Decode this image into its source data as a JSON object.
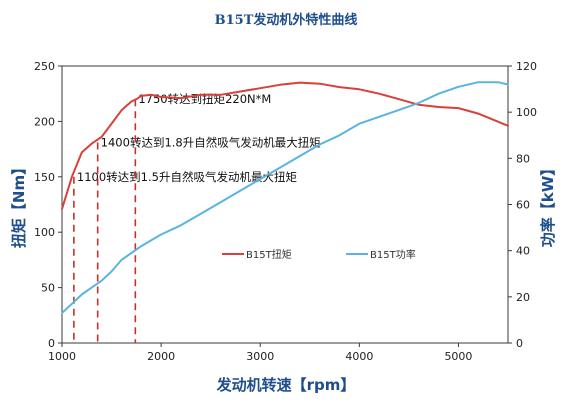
{
  "chart_data": {
    "type": "line",
    "title": "B15T发动机外特性曲线",
    "xlabel": "发动机转速【rpm】",
    "ylabel_left": "扭矩【Nm】",
    "ylabel_right": "功率【kW】",
    "xlim": [
      1000,
      5500
    ],
    "ylim_left": [
      0,
      250
    ],
    "ylim_right": [
      0,
      120
    ],
    "x_ticks": [
      "1000",
      "2000",
      "3000",
      "4000",
      "5000"
    ],
    "y_left_ticks": [
      "0",
      "50",
      "100",
      "150",
      "200",
      "250"
    ],
    "y_right_ticks": [
      "0",
      "20",
      "40",
      "60",
      "80",
      "100",
      "120"
    ],
    "grid": false,
    "legend_position": "center-right",
    "series": [
      {
        "name": "B15T扭矩",
        "axis": "left",
        "color": "#d9403a",
        "x": [
          1000,
          1100,
          1200,
          1300,
          1400,
          1500,
          1600,
          1700,
          1750,
          1800,
          1900,
          2000,
          2200,
          2400,
          2600,
          2800,
          3000,
          3200,
          3400,
          3600,
          3800,
          4000,
          4200,
          4400,
          4600,
          4800,
          5000,
          5200,
          5500
        ],
        "y": [
          121,
          150,
          172,
          180,
          186,
          198,
          210,
          218,
          220,
          223,
          224,
          222,
          221,
          224,
          224,
          227,
          230,
          233,
          235,
          234,
          231,
          229,
          225,
          220,
          215,
          213,
          212,
          207,
          196
        ]
      },
      {
        "name": "B15T功率",
        "axis": "right",
        "color": "#5ab4e0",
        "x": [
          1000,
          1100,
          1200,
          1300,
          1400,
          1500,
          1600,
          1700,
          1800,
          2000,
          2200,
          2400,
          2600,
          2800,
          3000,
          3200,
          3400,
          3600,
          3800,
          4000,
          4200,
          4400,
          4600,
          4800,
          5000,
          5200,
          5400,
          5500
        ],
        "y": [
          13,
          17,
          21,
          24,
          27,
          31,
          36,
          39,
          42,
          47,
          51,
          56,
          61,
          66,
          71,
          76,
          81,
          86,
          90,
          95,
          98,
          101,
          104,
          108,
          111,
          113,
          113,
          112
        ]
      }
    ],
    "annotations": [
      {
        "text": "1100转达到1.5升自然吸气发动机最大扭矩",
        "x": 1120,
        "y": 150
      },
      {
        "text": "1400转达到1.8升自然吸气发动机最大扭矩",
        "x": 1360,
        "y": 181
      },
      {
        "text": "1750转达到扭矩220N*M",
        "x": 1740,
        "y": 220
      }
    ]
  }
}
